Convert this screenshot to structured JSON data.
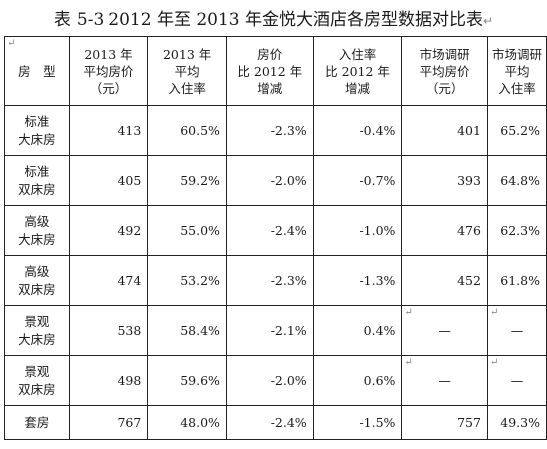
{
  "title": {
    "label": "表",
    "number": "5-3",
    "text": "2012 年至 2013 年金悦大酒店各房型数据对比表"
  },
  "para_mark": "↵",
  "headers": [
    [
      "房　型"
    ],
    [
      "2013 年",
      "平均房价",
      "（元）"
    ],
    [
      "2013 年",
      "平均",
      "入住率"
    ],
    [
      "房价",
      "比 2012 年",
      "增减"
    ],
    [
      "入住率",
      "比 2012 年",
      "增减"
    ],
    [
      "市场调研",
      "平均房价",
      "（元）"
    ],
    [
      "市场调研",
      "平均",
      "入住率"
    ]
  ],
  "rows": [
    {
      "type": [
        "标准",
        "大床房"
      ],
      "price_2013": "413",
      "occupancy_2013": "60.5%",
      "price_change": "-2.3%",
      "occupancy_change": "-0.4%",
      "market_price": "401",
      "market_occupancy": "65.2%"
    },
    {
      "type": [
        "标准",
        "双床房"
      ],
      "price_2013": "405",
      "occupancy_2013": "59.2%",
      "price_change": "-2.0%",
      "occupancy_change": "-0.7%",
      "market_price": "393",
      "market_occupancy": "64.8%"
    },
    {
      "type": [
        "高级",
        "大床房"
      ],
      "price_2013": "492",
      "occupancy_2013": "55.0%",
      "price_change": "-2.4%",
      "occupancy_change": "-1.0%",
      "market_price": "476",
      "market_occupancy": "62.3%"
    },
    {
      "type": [
        "高级",
        "双床房"
      ],
      "price_2013": "474",
      "occupancy_2013": "53.2%",
      "price_change": "-2.3%",
      "occupancy_change": "-1.3%",
      "market_price": "452",
      "market_occupancy": "61.8%"
    },
    {
      "type": [
        "景观",
        "大床房"
      ],
      "price_2013": "538",
      "occupancy_2013": "58.4%",
      "price_change": "-2.1%",
      "occupancy_change": "0.4%",
      "market_price": "—",
      "market_occupancy": "—"
    },
    {
      "type": [
        "景观",
        "双床房"
      ],
      "price_2013": "498",
      "occupancy_2013": "59.6%",
      "price_change": "-2.0%",
      "occupancy_change": "0.6%",
      "market_price": "—",
      "market_occupancy": "—"
    },
    {
      "type": [
        "套房"
      ],
      "price_2013": "767",
      "occupancy_2013": "48.0%",
      "price_change": "-2.4%",
      "occupancy_change": "-1.5%",
      "market_price": "757",
      "market_occupancy": "49.3%"
    }
  ]
}
